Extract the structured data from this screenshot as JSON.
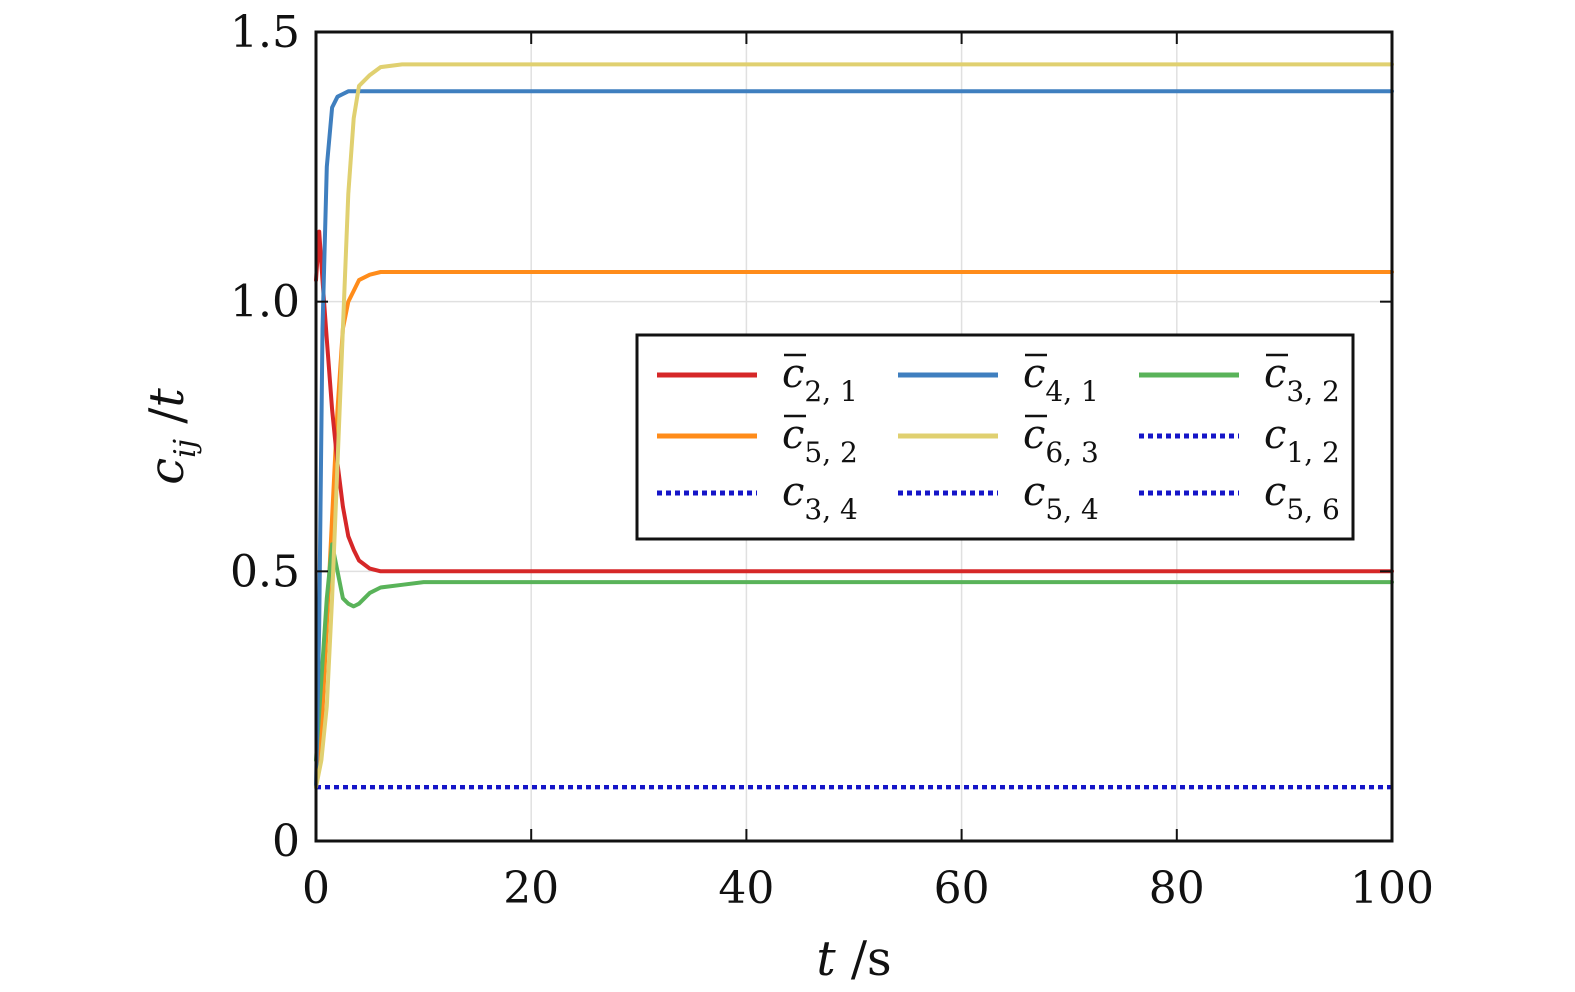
{
  "chart_data": {
    "type": "line",
    "xlabel": "t /s",
    "ylabel": "c_ij /t",
    "xlim": [
      0,
      100
    ],
    "ylim": [
      0,
      1.5
    ],
    "xticks": [
      0,
      20,
      40,
      60,
      80,
      100
    ],
    "xtick_labels": [
      "0",
      "20",
      "40",
      "60",
      "80",
      "100"
    ],
    "yticks": [
      0,
      0.5,
      1.0,
      1.5
    ],
    "ytick_labels": [
      "0",
      "0.5",
      "1.0",
      "1.5"
    ],
    "grid": true,
    "legend_position": "center-right",
    "series": [
      {
        "name": "c̄2, 1",
        "base": "c",
        "bar": true,
        "sub": "2, 1",
        "color": "#d62728",
        "dash": "solid",
        "x": [
          0,
          0.3,
          0.6,
          1,
          1.5,
          2,
          2.5,
          3,
          3.5,
          4,
          5,
          6,
          8,
          10,
          100
        ],
        "y": [
          1.04,
          1.13,
          1.04,
          0.93,
          0.8,
          0.7,
          0.62,
          0.565,
          0.54,
          0.52,
          0.505,
          0.5,
          0.5,
          0.5,
          0.5
        ]
      },
      {
        "name": "c̄4, 1",
        "base": "c",
        "bar": true,
        "sub": "4, 1",
        "color": "#3f7fbf",
        "dash": "solid",
        "x": [
          0,
          0.3,
          0.6,
          1,
          1.5,
          2,
          2.5,
          3,
          4,
          5,
          100
        ],
        "y": [
          0.1,
          0.4,
          0.95,
          1.25,
          1.36,
          1.38,
          1.385,
          1.39,
          1.39,
          1.39,
          1.39
        ]
      },
      {
        "name": "c̄3, 2",
        "base": "c",
        "bar": true,
        "sub": "3, 2",
        "color": "#59b359",
        "dash": "solid",
        "x": [
          0,
          0.5,
          1,
          1.5,
          2,
          2.5,
          3,
          3.5,
          4,
          5,
          6,
          8,
          10,
          100
        ],
        "y": [
          0.15,
          0.3,
          0.45,
          0.55,
          0.5,
          0.45,
          0.44,
          0.435,
          0.44,
          0.46,
          0.47,
          0.475,
          0.48,
          0.48
        ]
      },
      {
        "name": "c̄5, 2",
        "base": "c",
        "bar": true,
        "sub": "5, 2",
        "color": "#ff8c1a",
        "dash": "solid",
        "x": [
          0,
          0.5,
          1,
          1.5,
          2,
          2.5,
          3,
          3.5,
          4,
          5,
          6,
          8,
          100
        ],
        "y": [
          0.1,
          0.2,
          0.4,
          0.6,
          0.8,
          0.95,
          1.0,
          1.02,
          1.04,
          1.05,
          1.055,
          1.055,
          1.055
        ]
      },
      {
        "name": "c̄6, 3",
        "base": "c",
        "bar": true,
        "sub": "6, 3",
        "color": "#e0d070",
        "dash": "solid",
        "x": [
          0,
          0.5,
          1,
          1.5,
          2,
          2.5,
          3,
          3.5,
          4,
          5,
          6,
          8,
          10,
          100
        ],
        "y": [
          0.1,
          0.15,
          0.25,
          0.45,
          0.7,
          0.95,
          1.2,
          1.34,
          1.4,
          1.42,
          1.435,
          1.44,
          1.44,
          1.44
        ]
      },
      {
        "name": "c1, 2",
        "base": "c",
        "bar": false,
        "sub": "1, 2",
        "color": "#1515c8",
        "dash": "dotted",
        "x": [
          0,
          100
        ],
        "y": [
          0.1,
          0.1
        ]
      },
      {
        "name": "c3, 4",
        "base": "c",
        "bar": false,
        "sub": "3, 4",
        "color": "#1515c8",
        "dash": "dotted",
        "x": [
          0,
          100
        ],
        "y": [
          0.1,
          0.1
        ]
      },
      {
        "name": "c5, 4",
        "base": "c",
        "bar": false,
        "sub": "5, 4",
        "color": "#1515c8",
        "dash": "dotted",
        "x": [
          0,
          100
        ],
        "y": [
          0.1,
          0.1
        ]
      },
      {
        "name": "c5, 6",
        "base": "c",
        "bar": false,
        "sub": "5, 6",
        "color": "#1515c8",
        "dash": "dotted",
        "x": [
          0,
          100
        ],
        "y": [
          0.1,
          0.1
        ]
      }
    ],
    "legend_order": [
      "c̄2, 1",
      "c̄4, 1",
      "c̄3, 2",
      "c̄5, 2",
      "c̄6, 3",
      "c1, 2",
      "c3, 4",
      "c5, 4",
      "c5, 6"
    ]
  }
}
